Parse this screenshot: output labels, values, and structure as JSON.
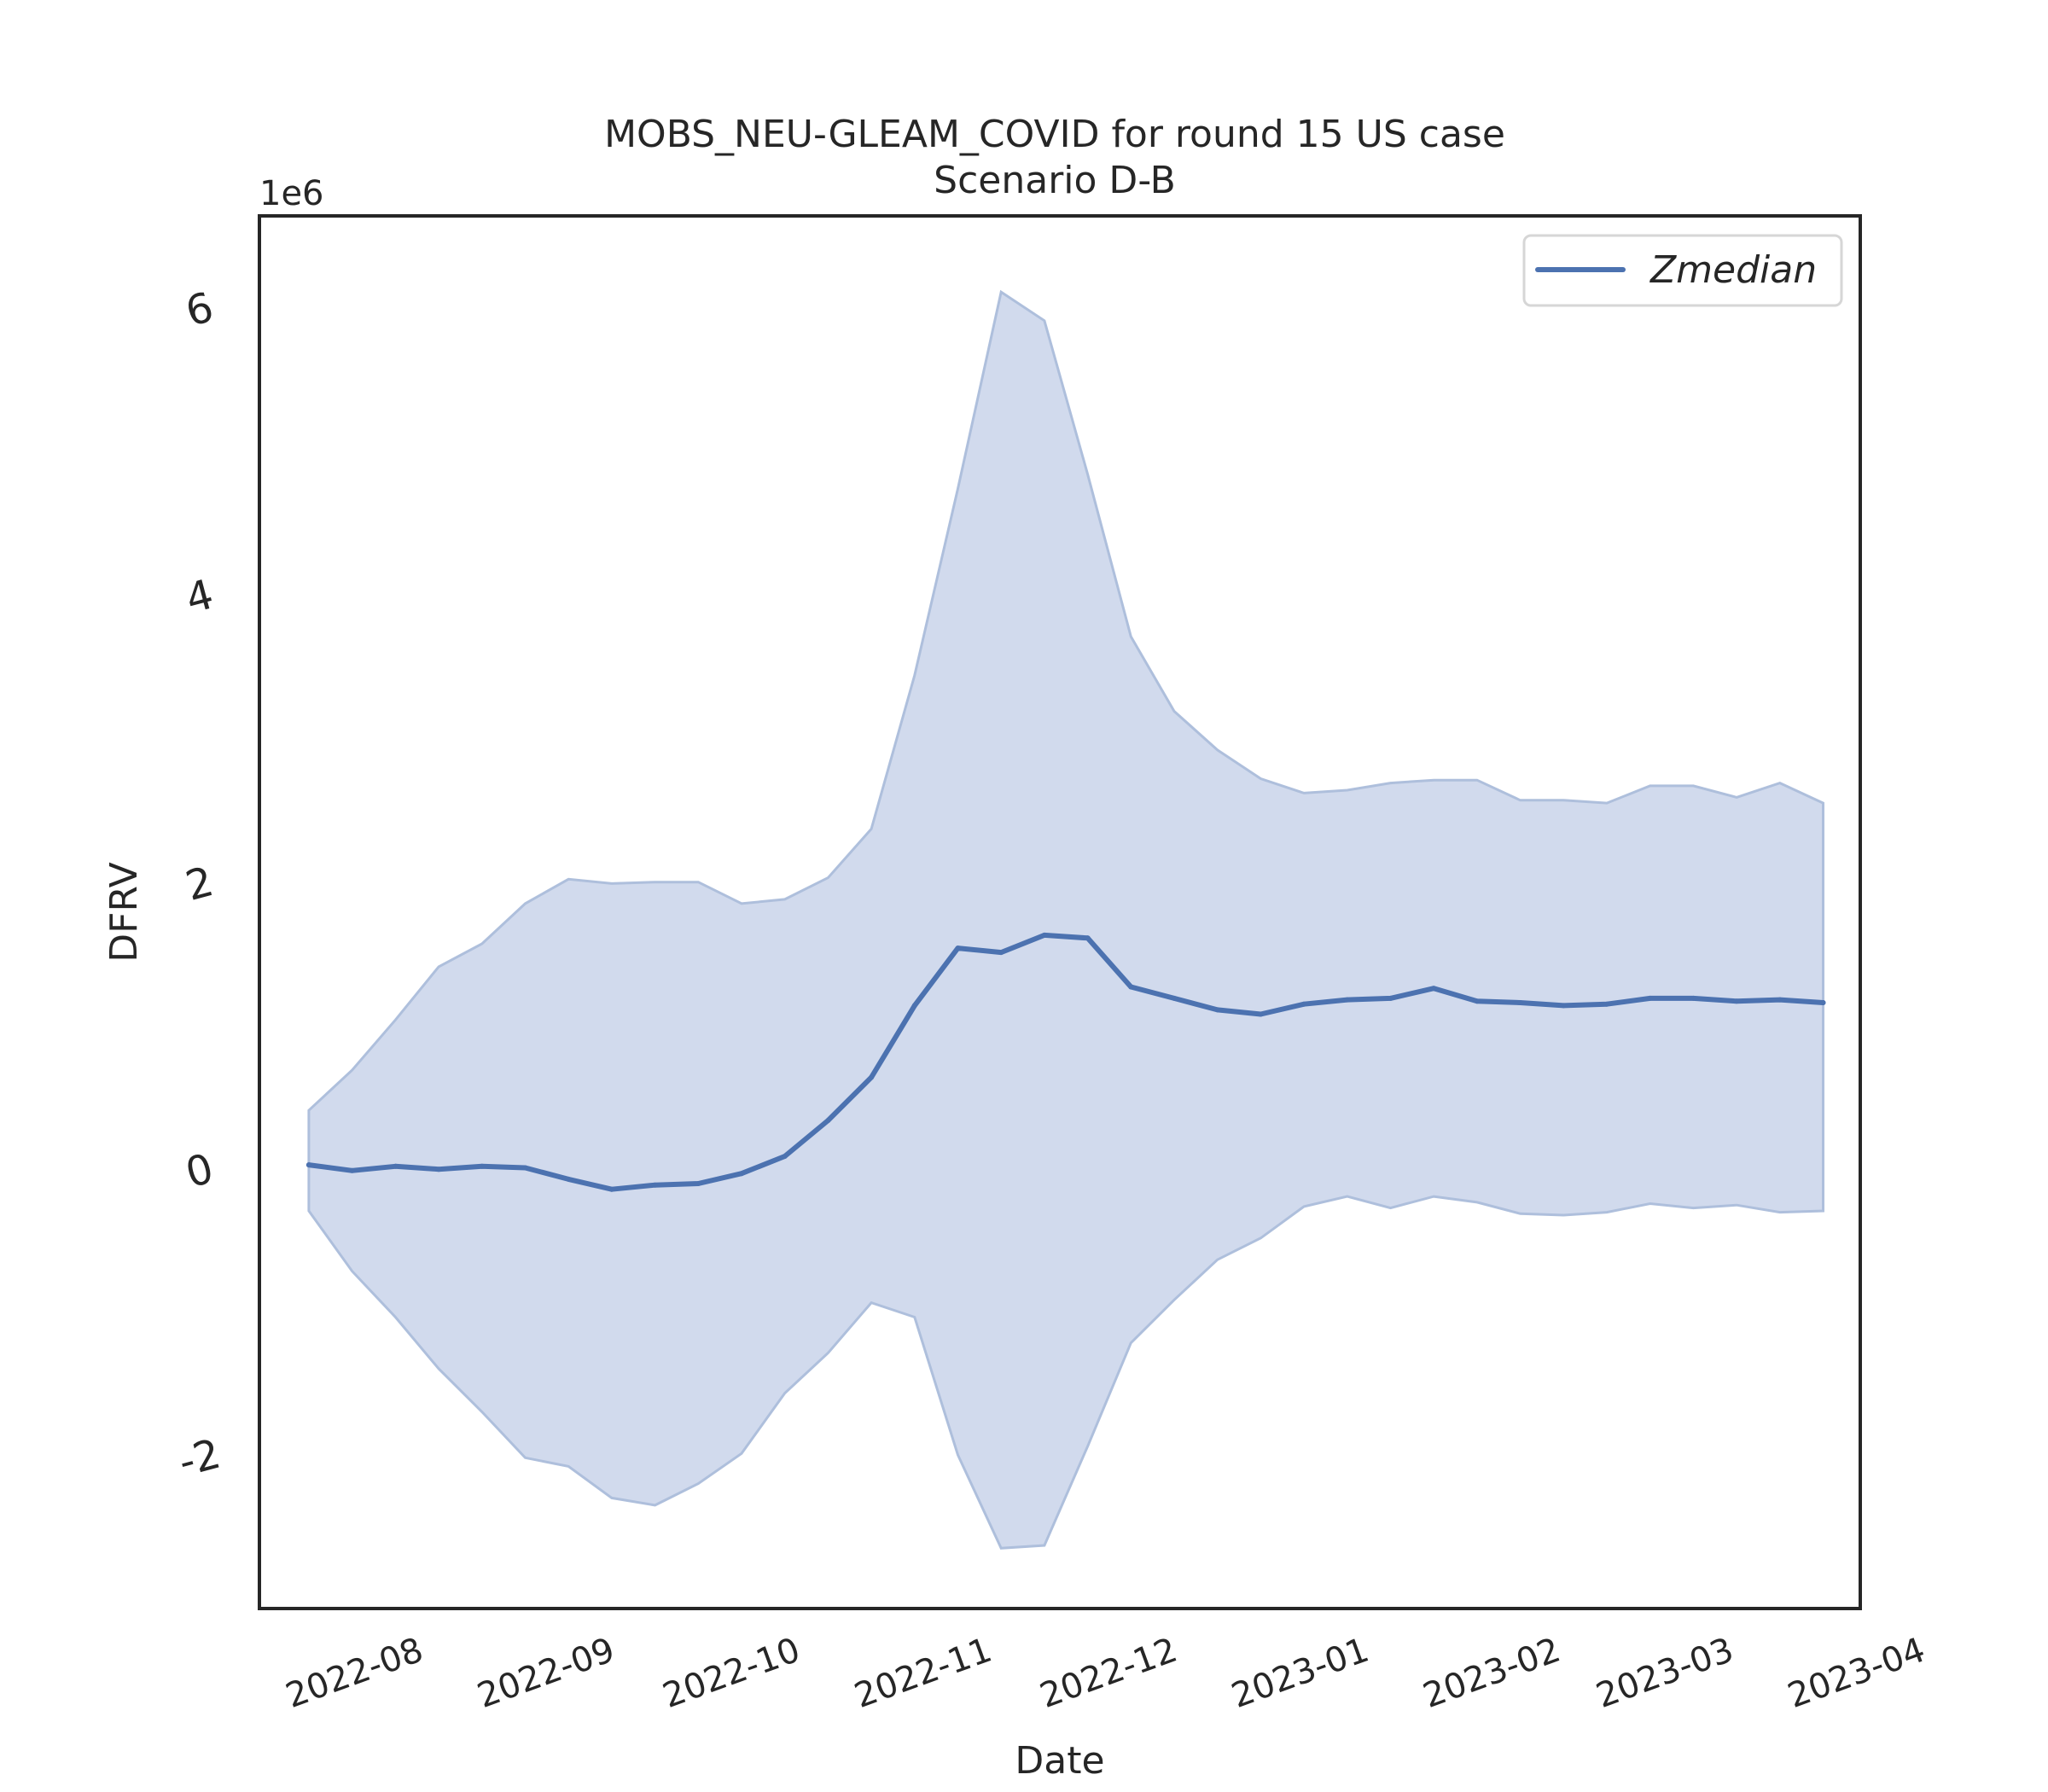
{
  "chart_data": {
    "type": "line",
    "title": "MOBS_NEU-GLEAM_COVID for round 15 US case",
    "subtitle": "Scenario D-B",
    "xlabel": "Date",
    "ylabel": "DFRV",
    "y_offset_label": "1e6",
    "ylim": [
      -3.05,
      6.65
    ],
    "xlim": [
      "2022-07-16",
      "2023-04-01"
    ],
    "grid": false,
    "legend_position": "top-right",
    "x_ticks": [
      "2022-08",
      "2022-09",
      "2022-10",
      "2022-11",
      "2022-12",
      "2023-01",
      "2023-02",
      "2023-03",
      "2023-04"
    ],
    "x_tick_dates": [
      "2022-08-01",
      "2022-09-01",
      "2022-10-01",
      "2022-11-01",
      "2022-12-01",
      "2023-01-01",
      "2023-02-01",
      "2023-03-01",
      "2023-04-01"
    ],
    "y_ticks": [
      -2,
      0,
      2,
      4,
      6
    ],
    "y_tick_labels": [
      "-2",
      "0",
      "2",
      "4",
      "6"
    ],
    "line_color": "#4c72b0",
    "band_color": "#c5d1e8",
    "x": [
      "2022-07-24",
      "2022-07-31",
      "2022-08-07",
      "2022-08-14",
      "2022-08-21",
      "2022-08-28",
      "2022-09-04",
      "2022-09-11",
      "2022-09-18",
      "2022-09-25",
      "2022-10-02",
      "2022-10-09",
      "2022-10-16",
      "2022-10-23",
      "2022-10-30",
      "2022-11-06",
      "2022-11-13",
      "2022-11-20",
      "2022-11-27",
      "2022-12-04",
      "2022-12-11",
      "2022-12-18",
      "2022-12-25",
      "2023-01-01",
      "2023-01-08",
      "2023-01-15",
      "2023-01-22",
      "2023-01-29",
      "2023-02-05",
      "2023-02-12",
      "2023-02-19",
      "2023-02-26",
      "2023-03-05",
      "2023-03-12",
      "2023-03-19",
      "2023-03-26"
    ],
    "series": [
      {
        "name": "Zmedian",
        "values": [
          0.04,
          0.0,
          0.03,
          0.01,
          0.03,
          0.02,
          -0.06,
          -0.13,
          -0.1,
          -0.09,
          -0.02,
          0.1,
          0.35,
          0.65,
          1.15,
          1.55,
          1.52,
          1.64,
          1.62,
          1.28,
          1.2,
          1.12,
          1.09,
          1.16,
          1.19,
          1.2,
          1.27,
          1.18,
          1.17,
          1.15,
          1.16,
          1.2,
          1.2,
          1.18,
          1.19,
          1.17
        ]
      }
    ],
    "band": {
      "upper": [
        0.42,
        0.7,
        1.05,
        1.42,
        1.58,
        1.86,
        2.03,
        2.0,
        2.01,
        2.01,
        1.86,
        1.89,
        2.04,
        2.38,
        3.45,
        4.75,
        6.12,
        5.92,
        4.85,
        3.72,
        3.2,
        2.93,
        2.73,
        2.63,
        2.65,
        2.7,
        2.72,
        2.72,
        2.58,
        2.58,
        2.56,
        2.68,
        2.68,
        2.6,
        2.7,
        2.56
      ],
      "lower": [
        -0.28,
        -0.7,
        -1.02,
        -1.38,
        -1.68,
        -2.0,
        -2.06,
        -2.28,
        -2.33,
        -2.18,
        -1.97,
        -1.55,
        -1.27,
        -0.92,
        -1.02,
        -1.98,
        -2.63,
        -2.61,
        -1.92,
        -1.2,
        -0.9,
        -0.62,
        -0.47,
        -0.25,
        -0.18,
        -0.26,
        -0.18,
        -0.22,
        -0.3,
        -0.31,
        -0.29,
        -0.23,
        -0.26,
        -0.24,
        -0.29,
        -0.28
      ]
    }
  }
}
